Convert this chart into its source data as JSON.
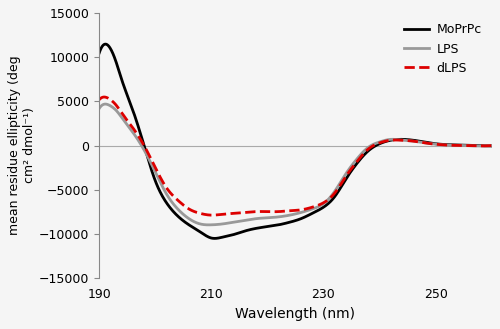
{
  "title": "",
  "xlabel": "Wavelength (nm)",
  "ylabel": "mean residue ellipticity (deg\ncm² dmol⁻¹)",
  "xlim": [
    190,
    260
  ],
  "ylim": [
    -15000,
    15000
  ],
  "xticks": [
    190,
    210,
    230,
    250
  ],
  "yticks": [
    -15000,
    -10000,
    -5000,
    0,
    5000,
    10000,
    15000
  ],
  "legend_labels": [
    "MoPrPc",
    "LPS",
    "dLPS"
  ],
  "background_color": "#f5f5f5",
  "MoPrPc_x": [
    190,
    191,
    192,
    193,
    194,
    196,
    198,
    200,
    202,
    204,
    206,
    208,
    210,
    212,
    214,
    216,
    218,
    220,
    222,
    224,
    226,
    228,
    230,
    232,
    234,
    236,
    238,
    240,
    242,
    244,
    246,
    248,
    250,
    252,
    255,
    258,
    260
  ],
  "MoPrPc_y": [
    10500,
    11500,
    11000,
    9500,
    7500,
    4000,
    0,
    -4000,
    -6500,
    -8000,
    -9000,
    -9800,
    -10500,
    -10400,
    -10100,
    -9700,
    -9400,
    -9200,
    -9000,
    -8700,
    -8300,
    -7700,
    -7000,
    -5800,
    -3800,
    -2000,
    -600,
    200,
    600,
    700,
    600,
    400,
    200,
    100,
    50,
    0,
    -50
  ],
  "LPS_x": [
    190,
    191,
    192,
    193,
    194,
    196,
    198,
    200,
    202,
    204,
    206,
    208,
    210,
    212,
    214,
    216,
    218,
    220,
    222,
    224,
    226,
    228,
    230,
    232,
    234,
    236,
    238,
    240,
    242,
    244,
    246,
    248,
    250,
    252,
    255,
    258,
    260
  ],
  "LPS_y": [
    4200,
    4700,
    4500,
    4000,
    3200,
    1500,
    -500,
    -3000,
    -5500,
    -7200,
    -8300,
    -8900,
    -9000,
    -8900,
    -8700,
    -8500,
    -8300,
    -8200,
    -8100,
    -7900,
    -7600,
    -7200,
    -6600,
    -5200,
    -3200,
    -1500,
    -200,
    400,
    700,
    600,
    500,
    300,
    150,
    50,
    0,
    -50,
    0
  ],
  "dLPS_x": [
    190,
    191,
    192,
    193,
    194,
    196,
    198,
    200,
    202,
    204,
    206,
    208,
    210,
    212,
    214,
    216,
    218,
    220,
    222,
    224,
    226,
    228,
    230,
    232,
    234,
    236,
    238,
    240,
    242,
    244,
    246,
    248,
    250,
    252,
    255,
    258,
    260
  ],
  "dLPS_y": [
    5200,
    5500,
    5200,
    4600,
    3700,
    2000,
    0,
    -2500,
    -4800,
    -6200,
    -7200,
    -7700,
    -7900,
    -7800,
    -7700,
    -7600,
    -7500,
    -7500,
    -7500,
    -7400,
    -7300,
    -7000,
    -6500,
    -5400,
    -3500,
    -1800,
    -400,
    300,
    600,
    600,
    500,
    300,
    150,
    50,
    0,
    -50,
    0
  ]
}
